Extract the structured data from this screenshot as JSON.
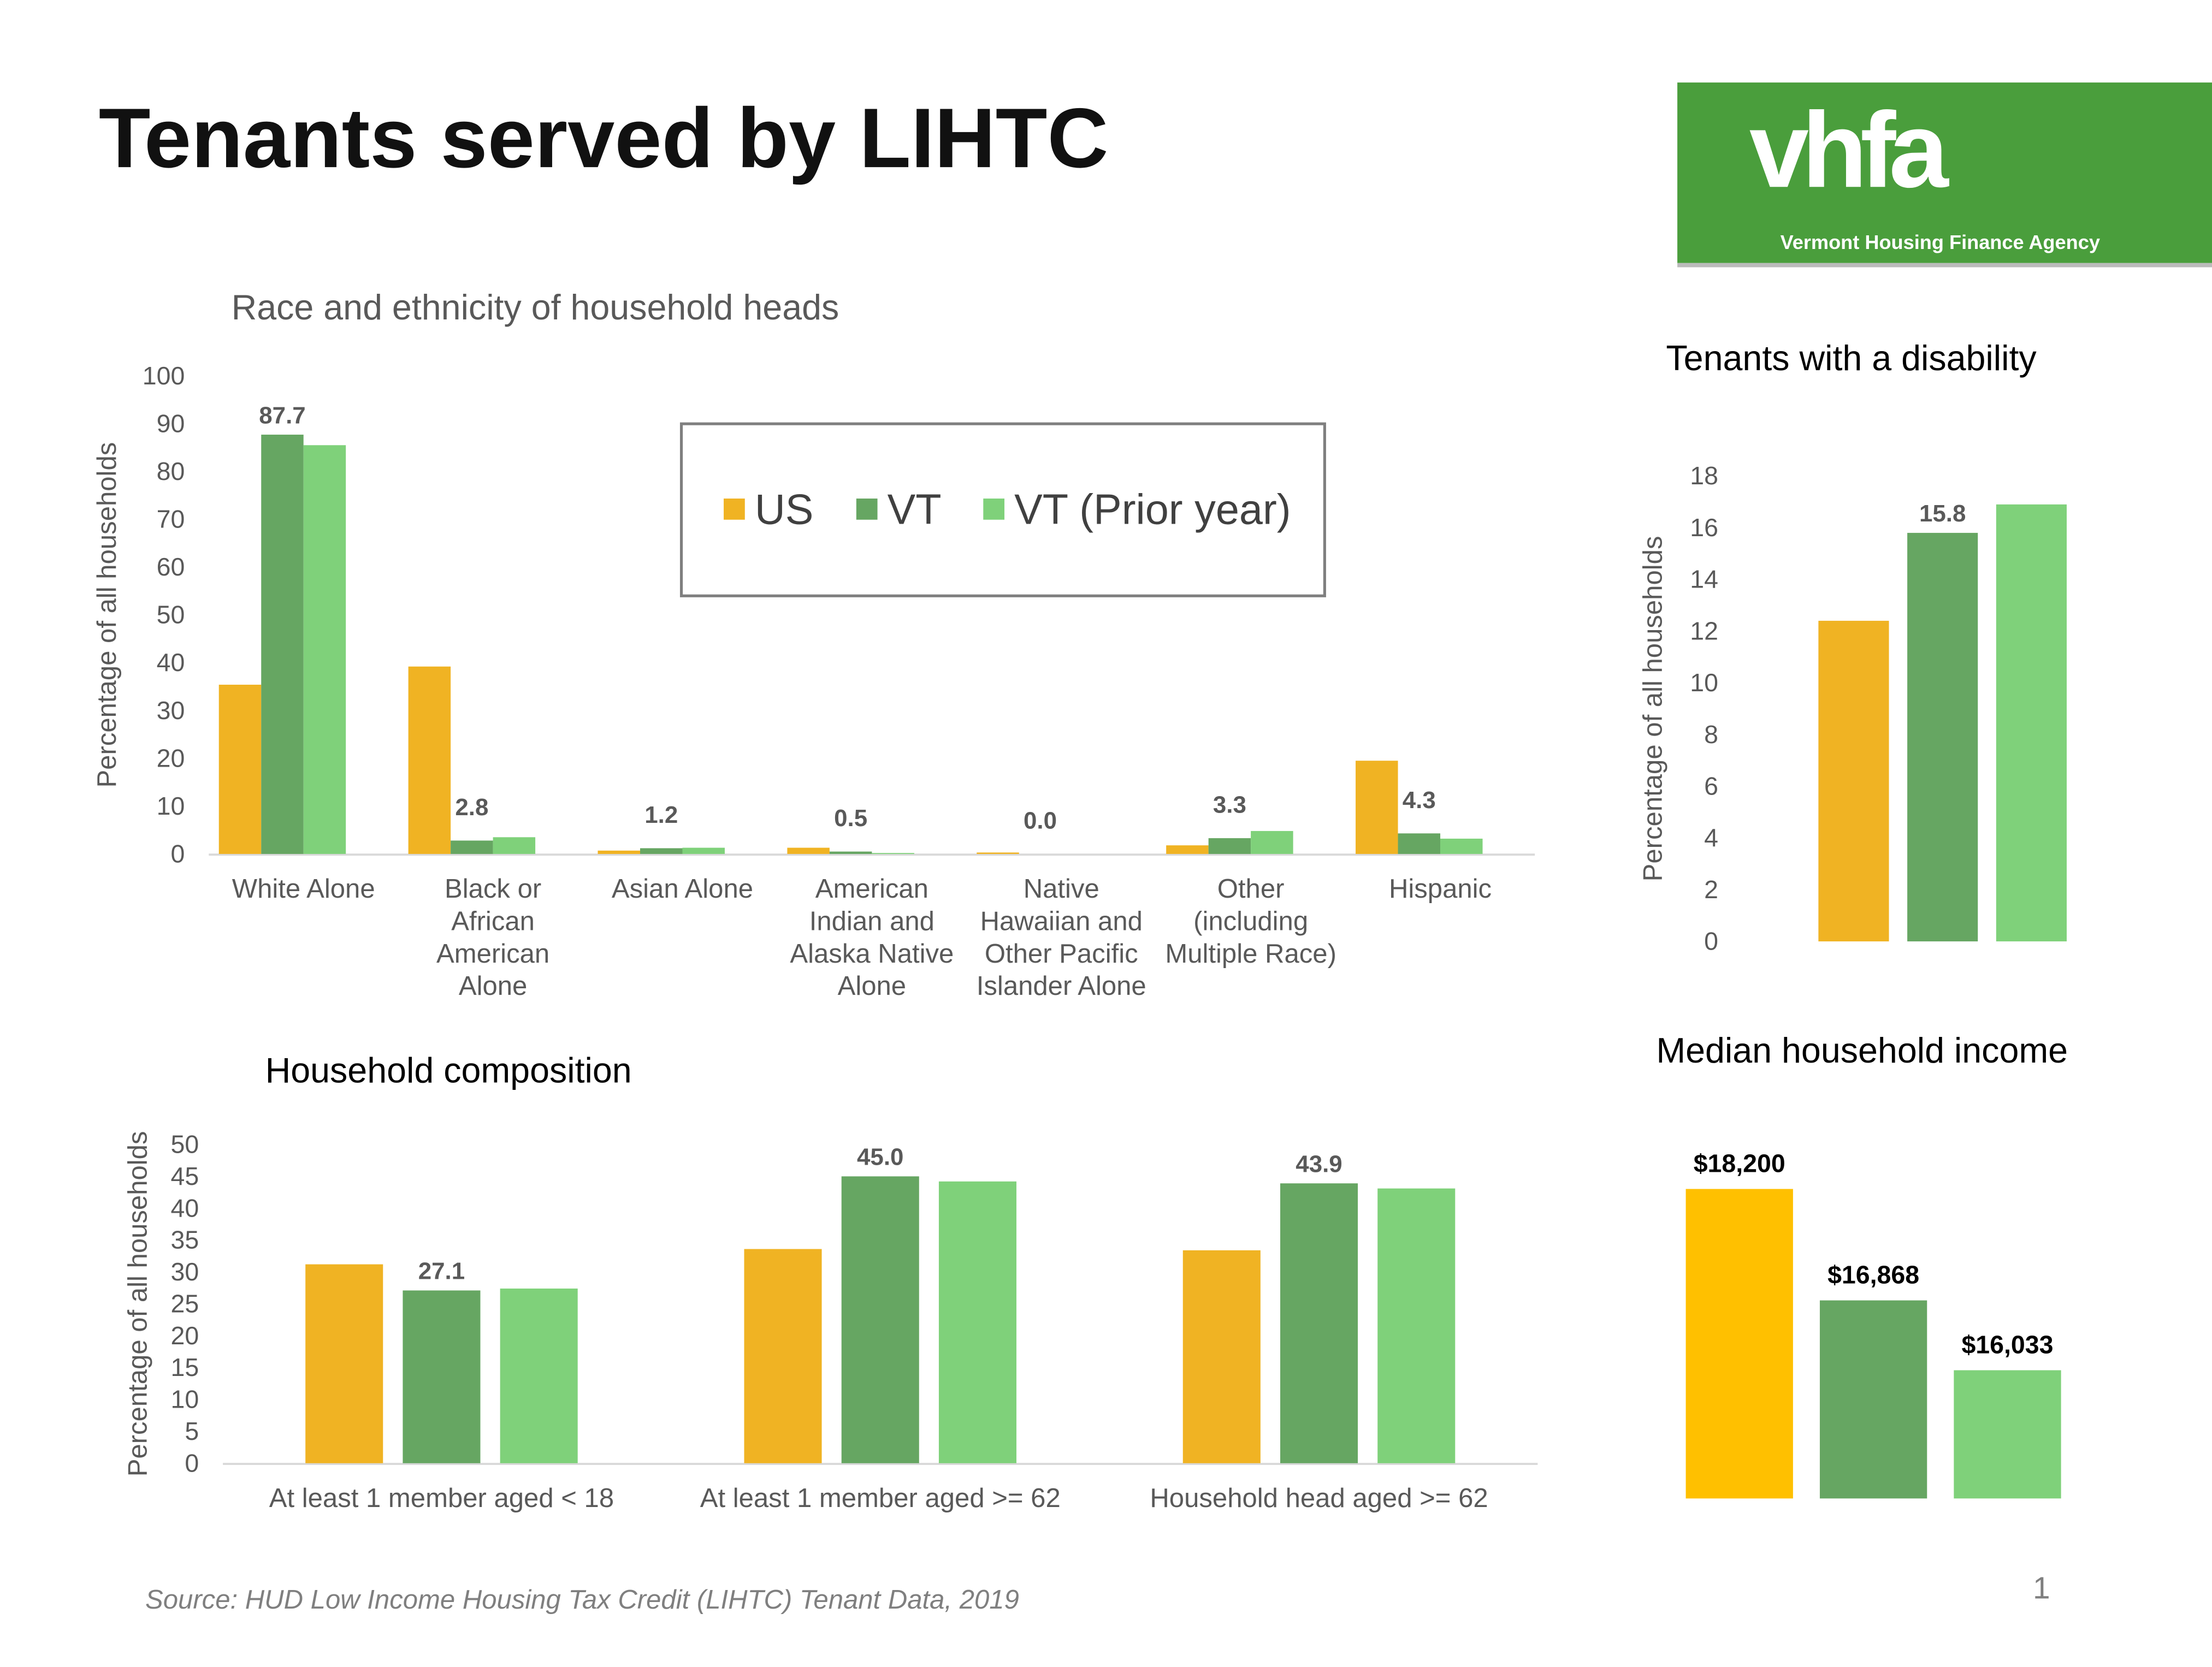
{
  "title": "Tenants served by LIHTC",
  "logo": {
    "text": "vhfa",
    "tagline": "Vermont Housing Finance Agency",
    "color": "#4A9E3C"
  },
  "source": "Source: HUD Low Income Housing Tax Credit (LIHTC) Tenant Data, 2019",
  "page_number": "1",
  "colors": {
    "US": "#F0B323",
    "VT": "#66A662",
    "VT (Prior year)": "#7FD17A",
    "US_income": "#FFC000"
  },
  "chart_data": [
    {
      "id": "race",
      "type": "bar",
      "title": "Race and ethnicity of household heads",
      "ylabel": "Percentage of all households",
      "ylim": [
        0,
        100
      ],
      "ytick_step": 10,
      "legend": [
        "US",
        "VT",
        "VT (Prior year)"
      ],
      "legend_placement": "top-center",
      "categories": [
        [
          "White Alone"
        ],
        [
          "Black or",
          "African",
          "American",
          "Alone"
        ],
        [
          "Asian Alone"
        ],
        [
          "American",
          "Indian and",
          "Alaska Native",
          "Alone"
        ],
        [
          "Native",
          "Hawaiian and",
          "Other Pacific",
          "Islander Alone"
        ],
        [
          "Other",
          "(including",
          "Multiple Race)"
        ],
        [
          "Hispanic"
        ]
      ],
      "series": [
        {
          "name": "US",
          "values": [
            35.4,
            39.2,
            0.7,
            1.3,
            0.3,
            1.8,
            19.5
          ]
        },
        {
          "name": "VT",
          "values": [
            87.7,
            2.8,
            1.2,
            0.5,
            0.0,
            3.3,
            4.3
          ],
          "labels": [
            "87.7",
            "2.8",
            "1.2",
            "0.5",
            "0.0",
            "3.3",
            "4.3"
          ]
        },
        {
          "name": "VT (Prior year)",
          "values": [
            85.5,
            3.5,
            1.3,
            0.2,
            0.0,
            4.8,
            3.2
          ]
        }
      ]
    },
    {
      "id": "disability",
      "type": "bar",
      "title": "Tenants with a disability",
      "ylabel": "Percentage of all households",
      "ylim": [
        0,
        18
      ],
      "ytick_step": 2,
      "categories": [
        [
          ""
        ]
      ],
      "series": [
        {
          "name": "US",
          "values": [
            12.4
          ]
        },
        {
          "name": "VT",
          "values": [
            15.8
          ],
          "labels": [
            "15.8"
          ]
        },
        {
          "name": "VT (Prior year)",
          "values": [
            16.9
          ]
        }
      ]
    },
    {
      "id": "composition",
      "type": "bar",
      "title": "Household composition",
      "ylabel": "Percentage of all households",
      "ylim": [
        0,
        50
      ],
      "ytick_step": 5,
      "categories": [
        [
          "At least 1 member aged < 18"
        ],
        [
          "At least 1 member aged >= 62"
        ],
        [
          "Household head aged >= 62"
        ]
      ],
      "series": [
        {
          "name": "US",
          "values": [
            31.2,
            33.6,
            33.4
          ]
        },
        {
          "name": "VT",
          "values": [
            27.1,
            45.0,
            43.9
          ],
          "labels": [
            "27.1",
            "45.0",
            "43.9"
          ]
        },
        {
          "name": "VT (Prior year)",
          "values": [
            27.4,
            44.2,
            43.1
          ]
        }
      ]
    },
    {
      "id": "income",
      "type": "bar",
      "title": "Median household income",
      "ylim": [
        14500,
        18500
      ],
      "categories": [
        "US",
        "VT",
        "VT (Prior year)"
      ],
      "values": [
        18200,
        16868,
        16033
      ],
      "labels": [
        "$18,200",
        "$16,868",
        "$16,033"
      ]
    }
  ]
}
